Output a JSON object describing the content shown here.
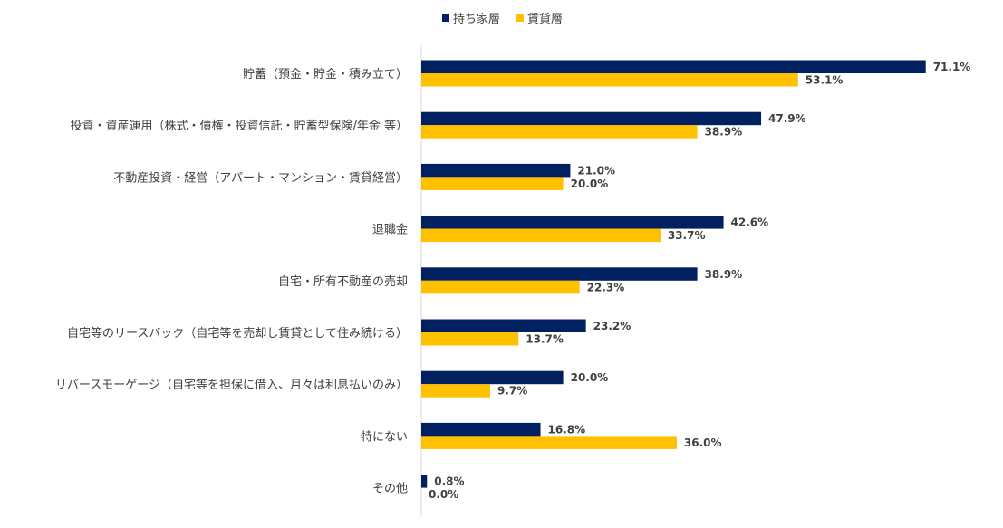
{
  "chart_data": {
    "type": "bar",
    "orientation": "horizontal",
    "categories": [
      "貯蓄（預金・貯金・積み立て）",
      "投資・資産運用（株式・債権・投資信託・貯蓄型保険/年金 等）",
      "不動産投資・経営（アパート・マンション・賃貸経営）",
      "退職金",
      "自宅・所有不動産の売却",
      "自宅等のリースバック（自宅等を売却し賃貸として住み続ける）",
      "リバースモーゲージ（自宅等を担保に借入、月々は利息払いのみ）",
      "特にない",
      "その他"
    ],
    "series": [
      {
        "name": "持ち家層",
        "color": "#002060",
        "values": [
          71.1,
          47.9,
          21.0,
          42.6,
          38.9,
          23.2,
          20.0,
          16.8,
          0.8
        ],
        "labels": [
          "71.1%",
          "47.9%",
          "21.0%",
          "42.6%",
          "38.9%",
          "23.2%",
          "20.0%",
          "16.8%",
          "0.8%"
        ]
      },
      {
        "name": "賃貸層",
        "color": "#FFC000",
        "values": [
          53.1,
          38.9,
          20.0,
          33.7,
          22.3,
          13.7,
          9.7,
          36.0,
          0.0
        ],
        "labels": [
          "53.1%",
          "38.9%",
          "20.0%",
          "33.7%",
          "22.3%",
          "13.7%",
          "9.7%",
          "36.0%",
          "0.0%"
        ]
      }
    ],
    "xlim": [
      0,
      80
    ],
    "grid": false,
    "legend_position": "top"
  }
}
